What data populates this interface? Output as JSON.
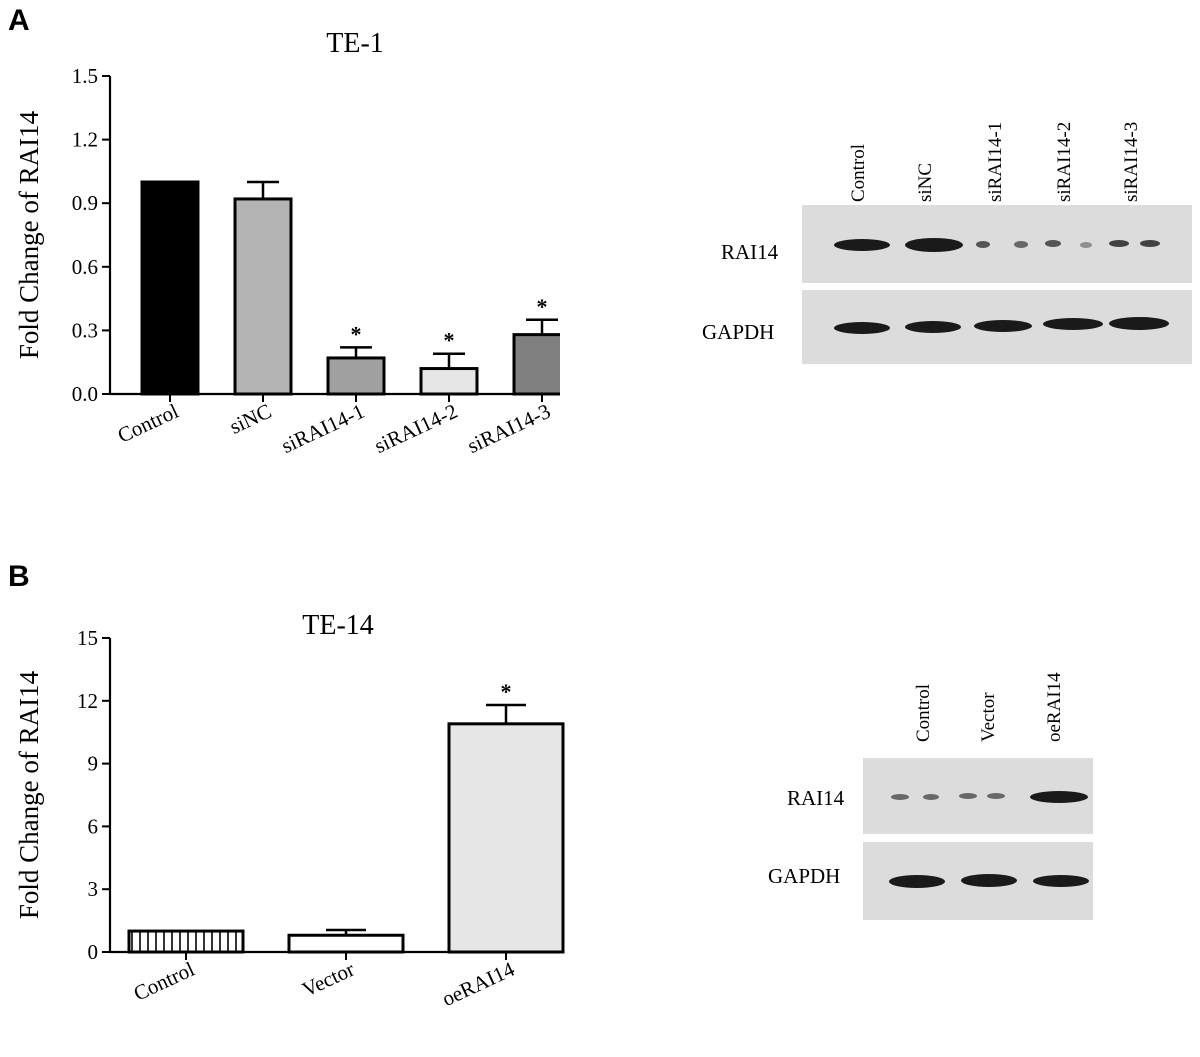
{
  "panels": [
    {
      "letter": "A",
      "chart_data": {
        "type": "bar",
        "title": "TE-1",
        "xlabel": "",
        "ylabel": "Fold Change of RAI14",
        "ylim": [
          0,
          1.5
        ],
        "yticks": [
          "0.0",
          "0.3",
          "0.6",
          "0.9",
          "1.2",
          "1.5"
        ],
        "categories": [
          "Control",
          "siNC",
          "siRAI14-1",
          "siRAI14-2",
          "siRAI14-3"
        ],
        "values": [
          1.0,
          0.92,
          0.17,
          0.12,
          0.28
        ],
        "errors": [
          0,
          0.08,
          0.05,
          0.07,
          0.07
        ],
        "significance": [
          "",
          "",
          "*",
          "*",
          "*"
        ],
        "colors": [
          "#000000",
          "#b4b4b4",
          "#a0a0a0",
          "#e6e6e6",
          "#808080"
        ],
        "grid": false
      },
      "blot": {
        "lanes": [
          "Control",
          "siNC",
          "siRAI14-1",
          "siRAI14-2",
          "siRAI14-3"
        ],
        "rows": [
          "RAI14",
          "GAPDH"
        ]
      }
    },
    {
      "letter": "B",
      "chart_data": {
        "type": "bar",
        "title": "TE-14",
        "xlabel": "",
        "ylabel": "Fold Change of RAI14",
        "ylim": [
          0,
          15
        ],
        "yticks": [
          "0",
          "3",
          "6",
          "9",
          "12",
          "15"
        ],
        "categories": [
          "Control",
          "Vector",
          "oeRAI14"
        ],
        "values": [
          1.0,
          0.8,
          10.9
        ],
        "errors": [
          0,
          0.25,
          0.9
        ],
        "significance": [
          "",
          "",
          "*"
        ],
        "colors": [
          "#ffffff",
          "#ffffff",
          "#e6e6e6"
        ],
        "patterns": [
          "vertical-stripes",
          "none",
          "none"
        ],
        "grid": false
      },
      "blot": {
        "lanes": [
          "Control",
          "Vector",
          "oeRAI14"
        ],
        "rows": [
          "RAI14",
          "GAPDH"
        ]
      }
    }
  ]
}
